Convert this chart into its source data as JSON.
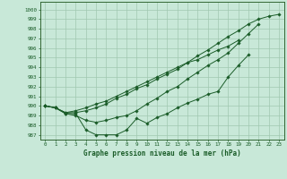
{
  "title": "Graphe pression niveau de la mer (hPa)",
  "bg_color": "#c8e8d8",
  "grid_color": "#a0c8b0",
  "line_color": "#1a5c28",
  "yticks": [
    987,
    988,
    989,
    990,
    991,
    992,
    993,
    994,
    995,
    996,
    997,
    998,
    999,
    1000
  ],
  "xticks": [
    0,
    1,
    2,
    3,
    4,
    5,
    6,
    7,
    8,
    9,
    10,
    11,
    12,
    13,
    14,
    15,
    16,
    17,
    18,
    19,
    20,
    21,
    22,
    23
  ],
  "ylim": [
    986.5,
    1000.8
  ],
  "xlim": [
    -0.5,
    23.5
  ],
  "line_A": [
    990.0,
    989.8,
    989.2,
    989.2,
    987.5,
    987.0,
    987.0,
    987.0,
    987.5,
    988.7,
    988.2,
    988.8,
    989.2,
    989.8,
    990.3,
    990.7,
    991.2,
    991.5,
    993.0,
    994.2,
    995.3,
    null,
    null,
    null
  ],
  "line_B": [
    990.0,
    989.8,
    989.2,
    989.0,
    988.5,
    988.3,
    988.5,
    988.8,
    989.0,
    989.5,
    990.2,
    990.8,
    991.5,
    992.0,
    992.8,
    993.5,
    994.2,
    994.8,
    995.5,
    996.5,
    997.5,
    998.5,
    null,
    null
  ],
  "line_C": [
    990.0,
    989.8,
    989.3,
    989.3,
    989.5,
    989.8,
    990.2,
    990.8,
    991.2,
    991.8,
    992.2,
    992.8,
    993.3,
    993.8,
    994.5,
    994.8,
    995.3,
    995.8,
    996.2,
    996.8,
    null,
    null,
    null,
    null
  ],
  "line_D": [
    990.0,
    989.8,
    989.3,
    989.5,
    989.8,
    990.2,
    990.5,
    991.0,
    991.5,
    992.0,
    992.5,
    993.0,
    993.5,
    994.0,
    994.5,
    995.2,
    995.8,
    996.5,
    997.2,
    997.8,
    998.5,
    999.0,
    999.3,
    999.5
  ]
}
